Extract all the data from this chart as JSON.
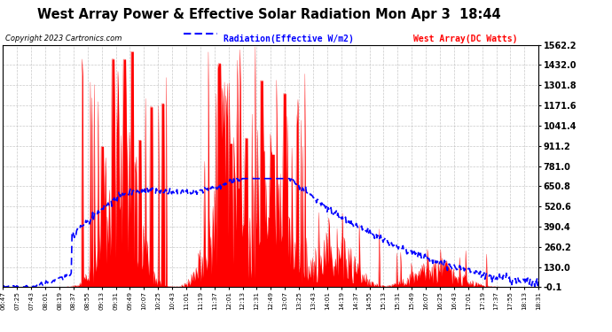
{
  "title": "West Array Power & Effective Solar Radiation Mon Apr 3  18:44",
  "copyright": "Copyright 2023 Cartronics.com",
  "legend_radiation": "Radiation(Effective W/m2)",
  "legend_west": "West Array(DC Watts)",
  "yticks": [
    1562.2,
    1432.0,
    1301.8,
    1171.6,
    1041.4,
    911.2,
    781.0,
    650.8,
    520.6,
    390.4,
    260.2,
    130.0,
    -0.1
  ],
  "ymin": -0.1,
  "ymax": 1562.2,
  "bg_color": "#ffffff",
  "plot_bg_color": "#ffffff",
  "grid_color": "#bbbbbb",
  "radiation_color": "#0000ff",
  "west_color": "#ff0000",
  "x_labels": [
    "06:47",
    "07:25",
    "07:43",
    "08:01",
    "08:19",
    "08:37",
    "08:55",
    "09:13",
    "09:31",
    "09:49",
    "10:07",
    "10:25",
    "10:43",
    "11:01",
    "11:19",
    "11:37",
    "12:01",
    "12:13",
    "12:31",
    "12:49",
    "13:07",
    "13:25",
    "13:43",
    "14:01",
    "14:19",
    "14:37",
    "14:55",
    "15:13",
    "15:31",
    "15:49",
    "16:07",
    "16:25",
    "16:43",
    "17:01",
    "17:19",
    "17:37",
    "17:55",
    "18:13",
    "18:31"
  ]
}
